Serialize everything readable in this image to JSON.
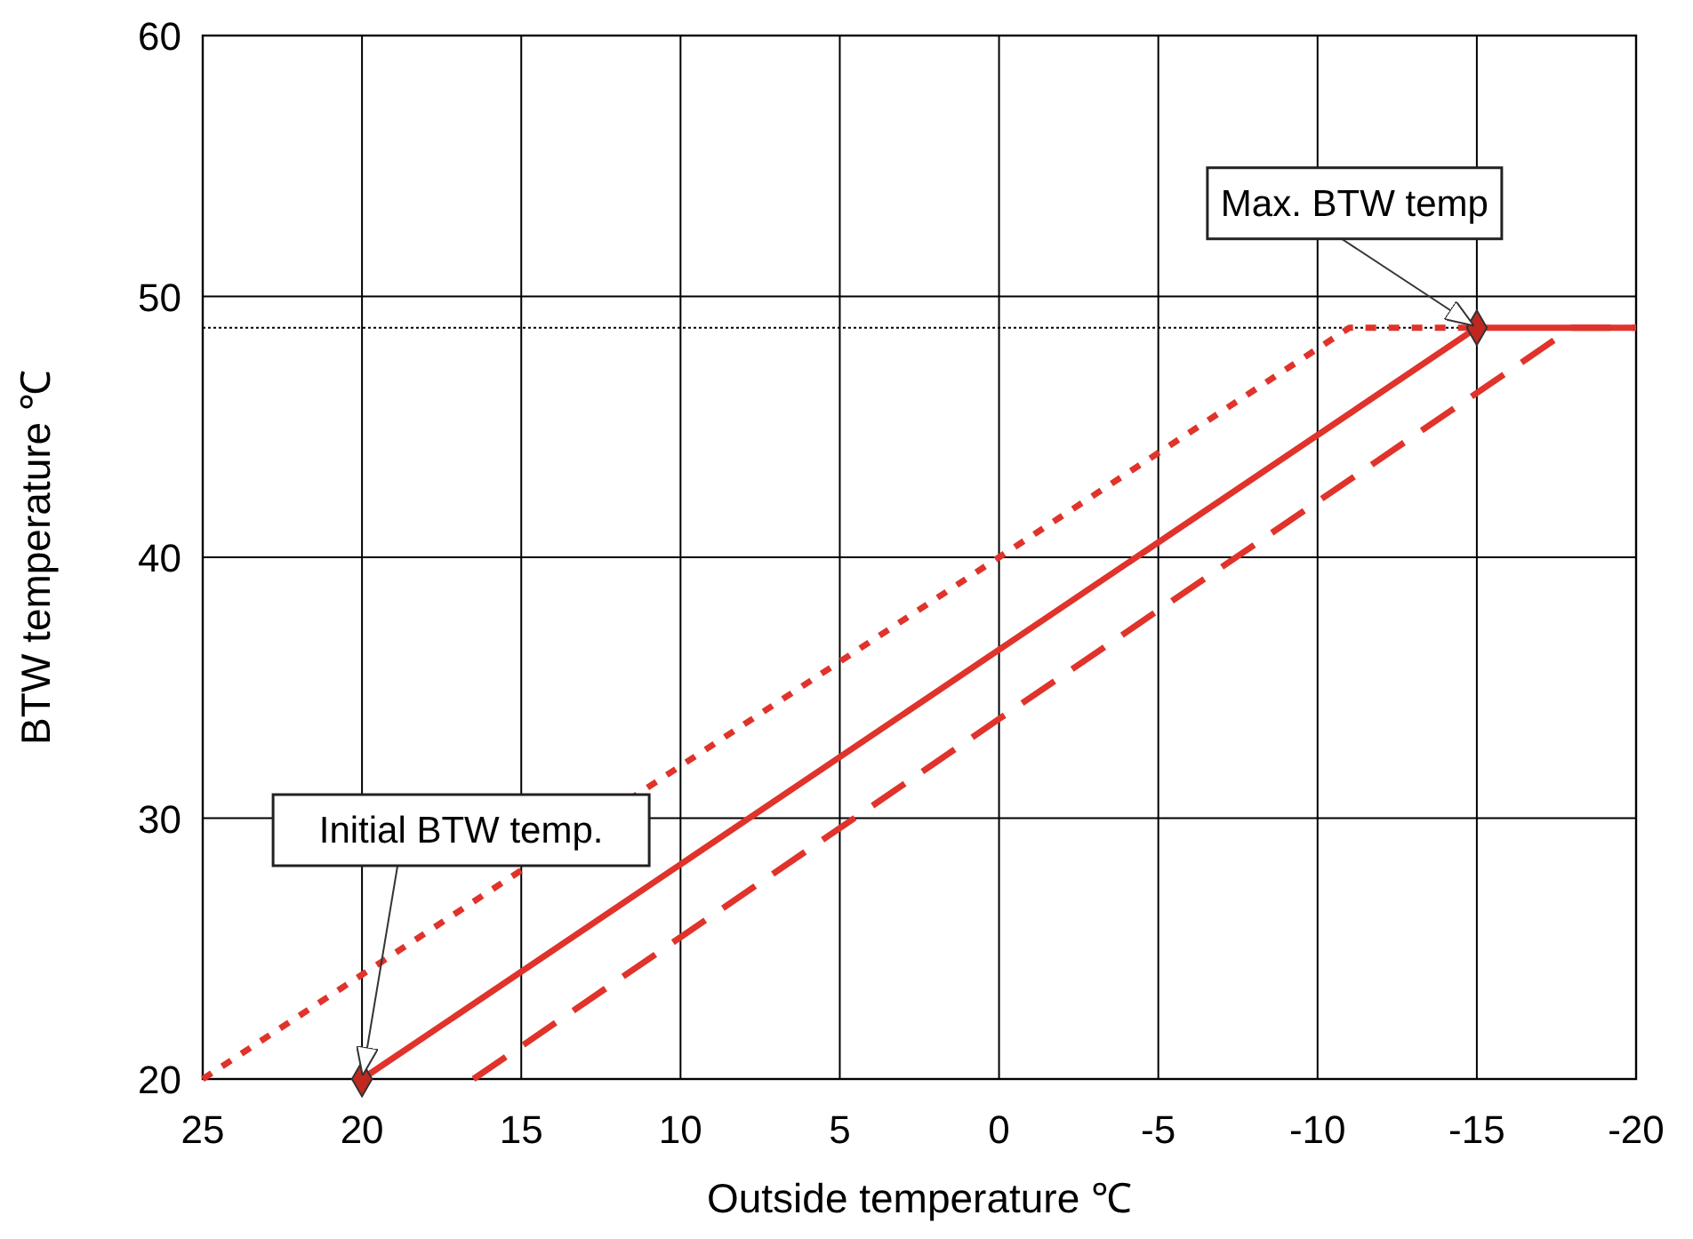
{
  "chart_data": {
    "type": "line",
    "xlabel": "Outside temperature ℃",
    "ylabel": "BTW temperature ℃",
    "xlim": [
      25,
      -20
    ],
    "xticks": [
      25,
      20,
      15,
      10,
      5,
      0,
      -5,
      -10,
      -15,
      -20
    ],
    "ylim": [
      20,
      60
    ],
    "yticks": [
      20,
      30,
      40,
      50,
      60
    ],
    "grid": true,
    "series": [
      {
        "color": "#e0332b",
        "line_style": "dotted",
        "x": [
          25,
          0,
          -11,
          -15
        ],
        "values": [
          20,
          40,
          48.8,
          48.8
        ]
      },
      {
        "color": "#e0332b",
        "line_style": "solid",
        "x": [
          20,
          -15,
          -20
        ],
        "values": [
          20,
          48.8,
          48.8
        ]
      },
      {
        "color": "#e0332b",
        "line_style": "dashed",
        "x": [
          16.5,
          0,
          -18,
          -20
        ],
        "values": [
          20,
          33.8,
          48.8,
          48.8
        ]
      },
      {
        "type": "scatter",
        "color": "#c0281f",
        "marker": "diamond",
        "x": [
          20,
          -15
        ],
        "values": [
          20,
          48.8
        ]
      }
    ],
    "ref_lines": [
      {
        "axis": "y",
        "value": 48.8,
        "color": "#000000",
        "line_style": "dotted"
      }
    ],
    "annotations": [
      {
        "text": "Initial BTW temp.",
        "x": 20,
        "y": 20
      },
      {
        "text": "Max. BTW temp",
        "x": -15,
        "y": 48.8
      }
    ]
  }
}
